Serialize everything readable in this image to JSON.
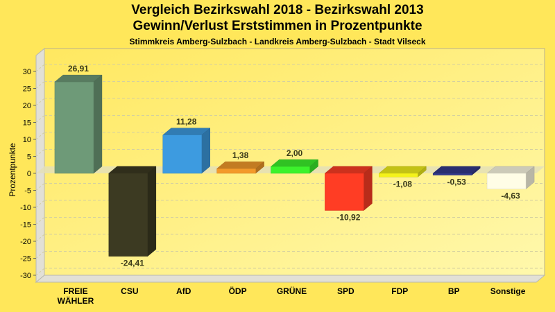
{
  "chart_data": {
    "type": "bar",
    "title": "Vergleich Bezirkswahl 2018 - Bezirkswahl 2013",
    "subtitle": "Gewinn/Verlust Erststimmen in Prozentpunkte",
    "subtitle2": "Stimmkreis Amberg-Sulzbach - Landkreis Amberg-Sulzbach - Stadt Vilseck",
    "xlabel": "",
    "ylabel": "Prozentpunkte",
    "ylim": [
      -30,
      30
    ],
    "yticks": [
      30,
      25,
      20,
      15,
      10,
      5,
      0,
      -5,
      -10,
      -15,
      -20,
      -25,
      -30
    ],
    "grid": true,
    "legend": "none",
    "categories": [
      "FREIE WÄHLER",
      "CSU",
      "AfD",
      "ÖDP",
      "GRÜNE",
      "SPD",
      "FDP",
      "BP",
      "Sonstige"
    ],
    "category_lines": [
      [
        "FREIE",
        "WÄHLER"
      ],
      [
        "CSU"
      ],
      [
        "AfD"
      ],
      [
        "ÖDP"
      ],
      [
        "GRÜNE"
      ],
      [
        "SPD"
      ],
      [
        "FDP"
      ],
      [
        "BP"
      ],
      [
        "Sonstige"
      ]
    ],
    "values": [
      26.91,
      -24.41,
      11.28,
      1.38,
      2.0,
      -10.92,
      -1.08,
      -0.53,
      -4.63
    ],
    "value_labels": [
      "26,91",
      "-24,41",
      "11,28",
      "1,38",
      "2,00",
      "-10,92",
      "-1,08",
      "-0,53",
      "-4,63"
    ],
    "colors": [
      "#6e9a78",
      "#3c3a22",
      "#3d9be0",
      "#f39a2a",
      "#3cf22c",
      "#ff3d24",
      "#f4f21a",
      "#333a8c",
      "#fffde6"
    ]
  },
  "theme": {
    "background": "#ffe75a",
    "plot_bg_top": "#ffea60",
    "plot_bg_bottom": "#fff7a8"
  }
}
